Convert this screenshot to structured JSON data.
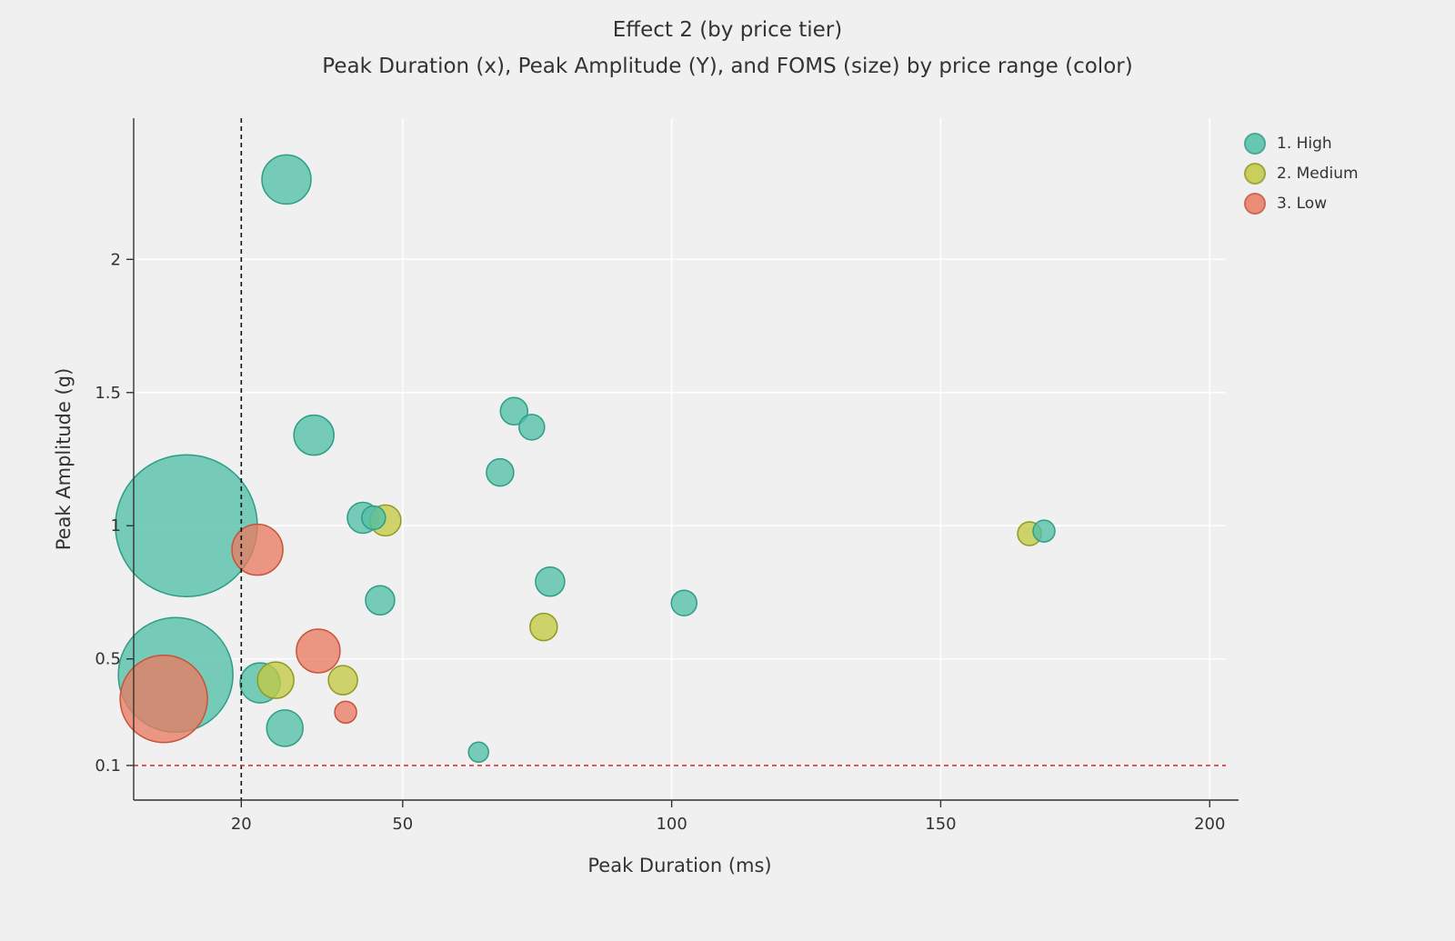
{
  "page": {
    "background": "#f0f0f0"
  },
  "chart_data": {
    "type": "bubble",
    "title": "Effect 2 (by price tier)",
    "subtitle": "Peak Duration (x), Peak Amplitude (Y), and FOMS (size) by price range (color)",
    "xlabel": "Peak Duration (ms)",
    "ylabel": "Peak Amplitude (g)",
    "xlim": [
      0,
      203
    ],
    "ylim": [
      -0.03,
      2.53
    ],
    "x_ticks": [
      20,
      50,
      100,
      150,
      200
    ],
    "x_tick_labels": [
      "20",
      "50",
      "100",
      "150",
      "200"
    ],
    "y_ticks": [
      0.1,
      0.5,
      1,
      1.5,
      2
    ],
    "y_tick_labels": [
      "0.1",
      "0.5",
      "1",
      "1.5",
      "2"
    ],
    "grid": true,
    "legend_position": "top-right",
    "colors": {
      "background": "#f0f0f0",
      "grid": "#ffffff",
      "axis": "#333333",
      "text": "#333333"
    },
    "ref_lines": {
      "vline_x": 20,
      "vline_color": "#111111",
      "hline_y": 0.1,
      "hline_color": "#dd3333"
    },
    "series": [
      {
        "name": "1. High",
        "color": "#52bfa8",
        "stroke": "#2e9d86",
        "points": [
          {
            "x": 9.8,
            "y": 1.0,
            "r": 78
          },
          {
            "x": 7.8,
            "y": 0.44,
            "r": 63
          },
          {
            "x": 28.4,
            "y": 2.3,
            "r": 27
          },
          {
            "x": 33.5,
            "y": 1.34,
            "r": 22
          },
          {
            "x": 42.6,
            "y": 1.03,
            "r": 17
          },
          {
            "x": 44.6,
            "y": 1.03,
            "r": 13
          },
          {
            "x": 70.7,
            "y": 1.43,
            "r": 15
          },
          {
            "x": 74.0,
            "y": 1.37,
            "r": 14
          },
          {
            "x": 68.1,
            "y": 1.2,
            "r": 15
          },
          {
            "x": 77.4,
            "y": 0.79,
            "r": 16
          },
          {
            "x": 102.3,
            "y": 0.71,
            "r": 14
          },
          {
            "x": 45.8,
            "y": 0.72,
            "r": 16
          },
          {
            "x": 23.5,
            "y": 0.41,
            "r": 22
          },
          {
            "x": 28.1,
            "y": 0.24,
            "r": 20
          },
          {
            "x": 64.1,
            "y": 0.15,
            "r": 11
          },
          {
            "x": 169.2,
            "y": 0.98,
            "r": 12
          }
        ]
      },
      {
        "name": "2. Medium",
        "color": "#c3ca44",
        "stroke": "#8f9a22",
        "points": [
          {
            "x": 46.8,
            "y": 1.02,
            "r": 17
          },
          {
            "x": 76.2,
            "y": 0.62,
            "r": 15
          },
          {
            "x": 26.4,
            "y": 0.42,
            "r": 20
          },
          {
            "x": 38.9,
            "y": 0.42,
            "r": 16
          },
          {
            "x": 166.5,
            "y": 0.97,
            "r": 13
          }
        ]
      },
      {
        "name": "3. Low",
        "color": "#e87c63",
        "stroke": "#c9523a",
        "points": [
          {
            "x": 23.0,
            "y": 0.91,
            "r": 28
          },
          {
            "x": 5.6,
            "y": 0.35,
            "r": 48
          },
          {
            "x": 34.3,
            "y": 0.53,
            "r": 24
          },
          {
            "x": 39.4,
            "y": 0.3,
            "r": 12
          }
        ]
      }
    ]
  }
}
